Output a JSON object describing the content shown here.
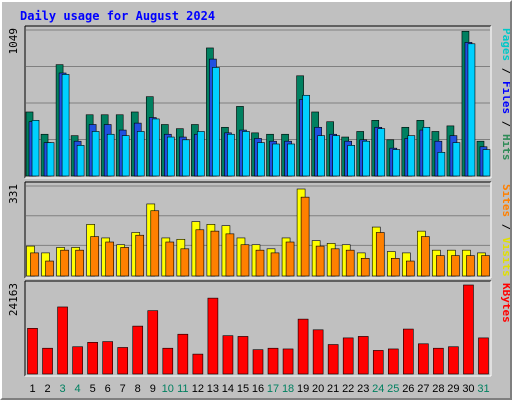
{
  "chart_data": {
    "type": "bar",
    "title": "Daily usage for August 2024",
    "days": [
      "1",
      "2",
      "3",
      "4",
      "5",
      "6",
      "7",
      "8",
      "9",
      "10",
      "11",
      "12",
      "13",
      "14",
      "15",
      "16",
      "17",
      "18",
      "19",
      "20",
      "21",
      "22",
      "23",
      "24",
      "25",
      "26",
      "27",
      "28",
      "29",
      "30",
      "31"
    ],
    "weekend_days": [
      "3",
      "4",
      "10",
      "11",
      "17",
      "18",
      "24",
      "25",
      "31"
    ],
    "panels": [
      {
        "id": "hits",
        "ymax_label": "1049",
        "ymax": 1049,
        "grid": true,
        "right_label": [
          {
            "text": "Pages",
            "color": "#00c8c8"
          },
          {
            "text": " / ",
            "color": "#000000"
          },
          {
            "text": "Files",
            "color": "#0000ff"
          },
          {
            "text": " / ",
            "color": "#000000"
          },
          {
            "text": "Hits",
            "color": "#2e8b57"
          }
        ],
        "series": [
          {
            "name": "Hits",
            "color": "#008060",
            "values": [
              460,
              300,
              800,
              290,
              440,
              440,
              440,
              460,
              570,
              370,
              340,
              370,
              920,
              350,
              500,
              310,
              300,
              300,
              720,
              460,
              390,
              280,
              320,
              400,
              260,
              350,
              400,
              320,
              360,
              1040,
              250
            ]
          },
          {
            "name": "Files",
            "color": "#2050e0",
            "values": [
              390,
              240,
              740,
              250,
              370,
              370,
              330,
              380,
              420,
              300,
              280,
              300,
              840,
              310,
              330,
              270,
              250,
              250,
              550,
              350,
              300,
              250,
              260,
              350,
              200,
              270,
              330,
              250,
              290,
              960,
              210
            ]
          },
          {
            "name": "Pages",
            "color": "#00d0ff",
            "values": [
              400,
              240,
              730,
              220,
              320,
              300,
              290,
              320,
              410,
              280,
              260,
              320,
              780,
              300,
              320,
              240,
              230,
              230,
              580,
              290,
              290,
              220,
              250,
              340,
              190,
              290,
              350,
              170,
              240,
              950,
              190
            ]
          }
        ]
      },
      {
        "id": "visits",
        "ymax_label": "331",
        "ymax": 331,
        "grid": true,
        "right_label": [
          {
            "text": "Sites",
            "color": "#ff8000"
          },
          {
            "text": " / ",
            "color": "#000000"
          },
          {
            "text": "Visits",
            "color": "#e0e000"
          }
        ],
        "series": [
          {
            "name": "Visits",
            "color": "#ffff00",
            "values": [
              110,
              85,
              105,
              105,
              190,
              140,
              115,
              160,
              265,
              140,
              135,
              200,
              190,
              185,
              140,
              115,
              100,
              140,
              320,
              130,
              120,
              115,
              85,
              180,
              90,
              85,
              165,
              95,
              95,
              95,
              85
            ]
          },
          {
            "name": "Sites",
            "color": "#ff8000",
            "values": [
              85,
              55,
              95,
              95,
              145,
              125,
              105,
              150,
              240,
              125,
              100,
              170,
              165,
              155,
              115,
              95,
              85,
              125,
              290,
              110,
              100,
              95,
              65,
              160,
              65,
              55,
              145,
              75,
              75,
              75,
              75
            ]
          }
        ]
      },
      {
        "id": "kbytes",
        "ymax_label": "24163",
        "ymax": 24163,
        "grid": false,
        "right_label": [
          {
            "text": "KBytes",
            "color": "#ff0000"
          }
        ],
        "series": [
          {
            "name": "KBytes",
            "color": "#ff0000",
            "values": [
              12400,
              7000,
              18200,
              7400,
              8600,
              8800,
              7200,
              13000,
              17200,
              7000,
              10800,
              5400,
              20600,
              10400,
              10200,
              6600,
              7000,
              6800,
              14900,
              12000,
              8000,
              9800,
              10200,
              6400,
              6800,
              12200,
              8200,
              7000,
              7400,
              24163,
              9800
            ]
          }
        ]
      }
    ]
  }
}
